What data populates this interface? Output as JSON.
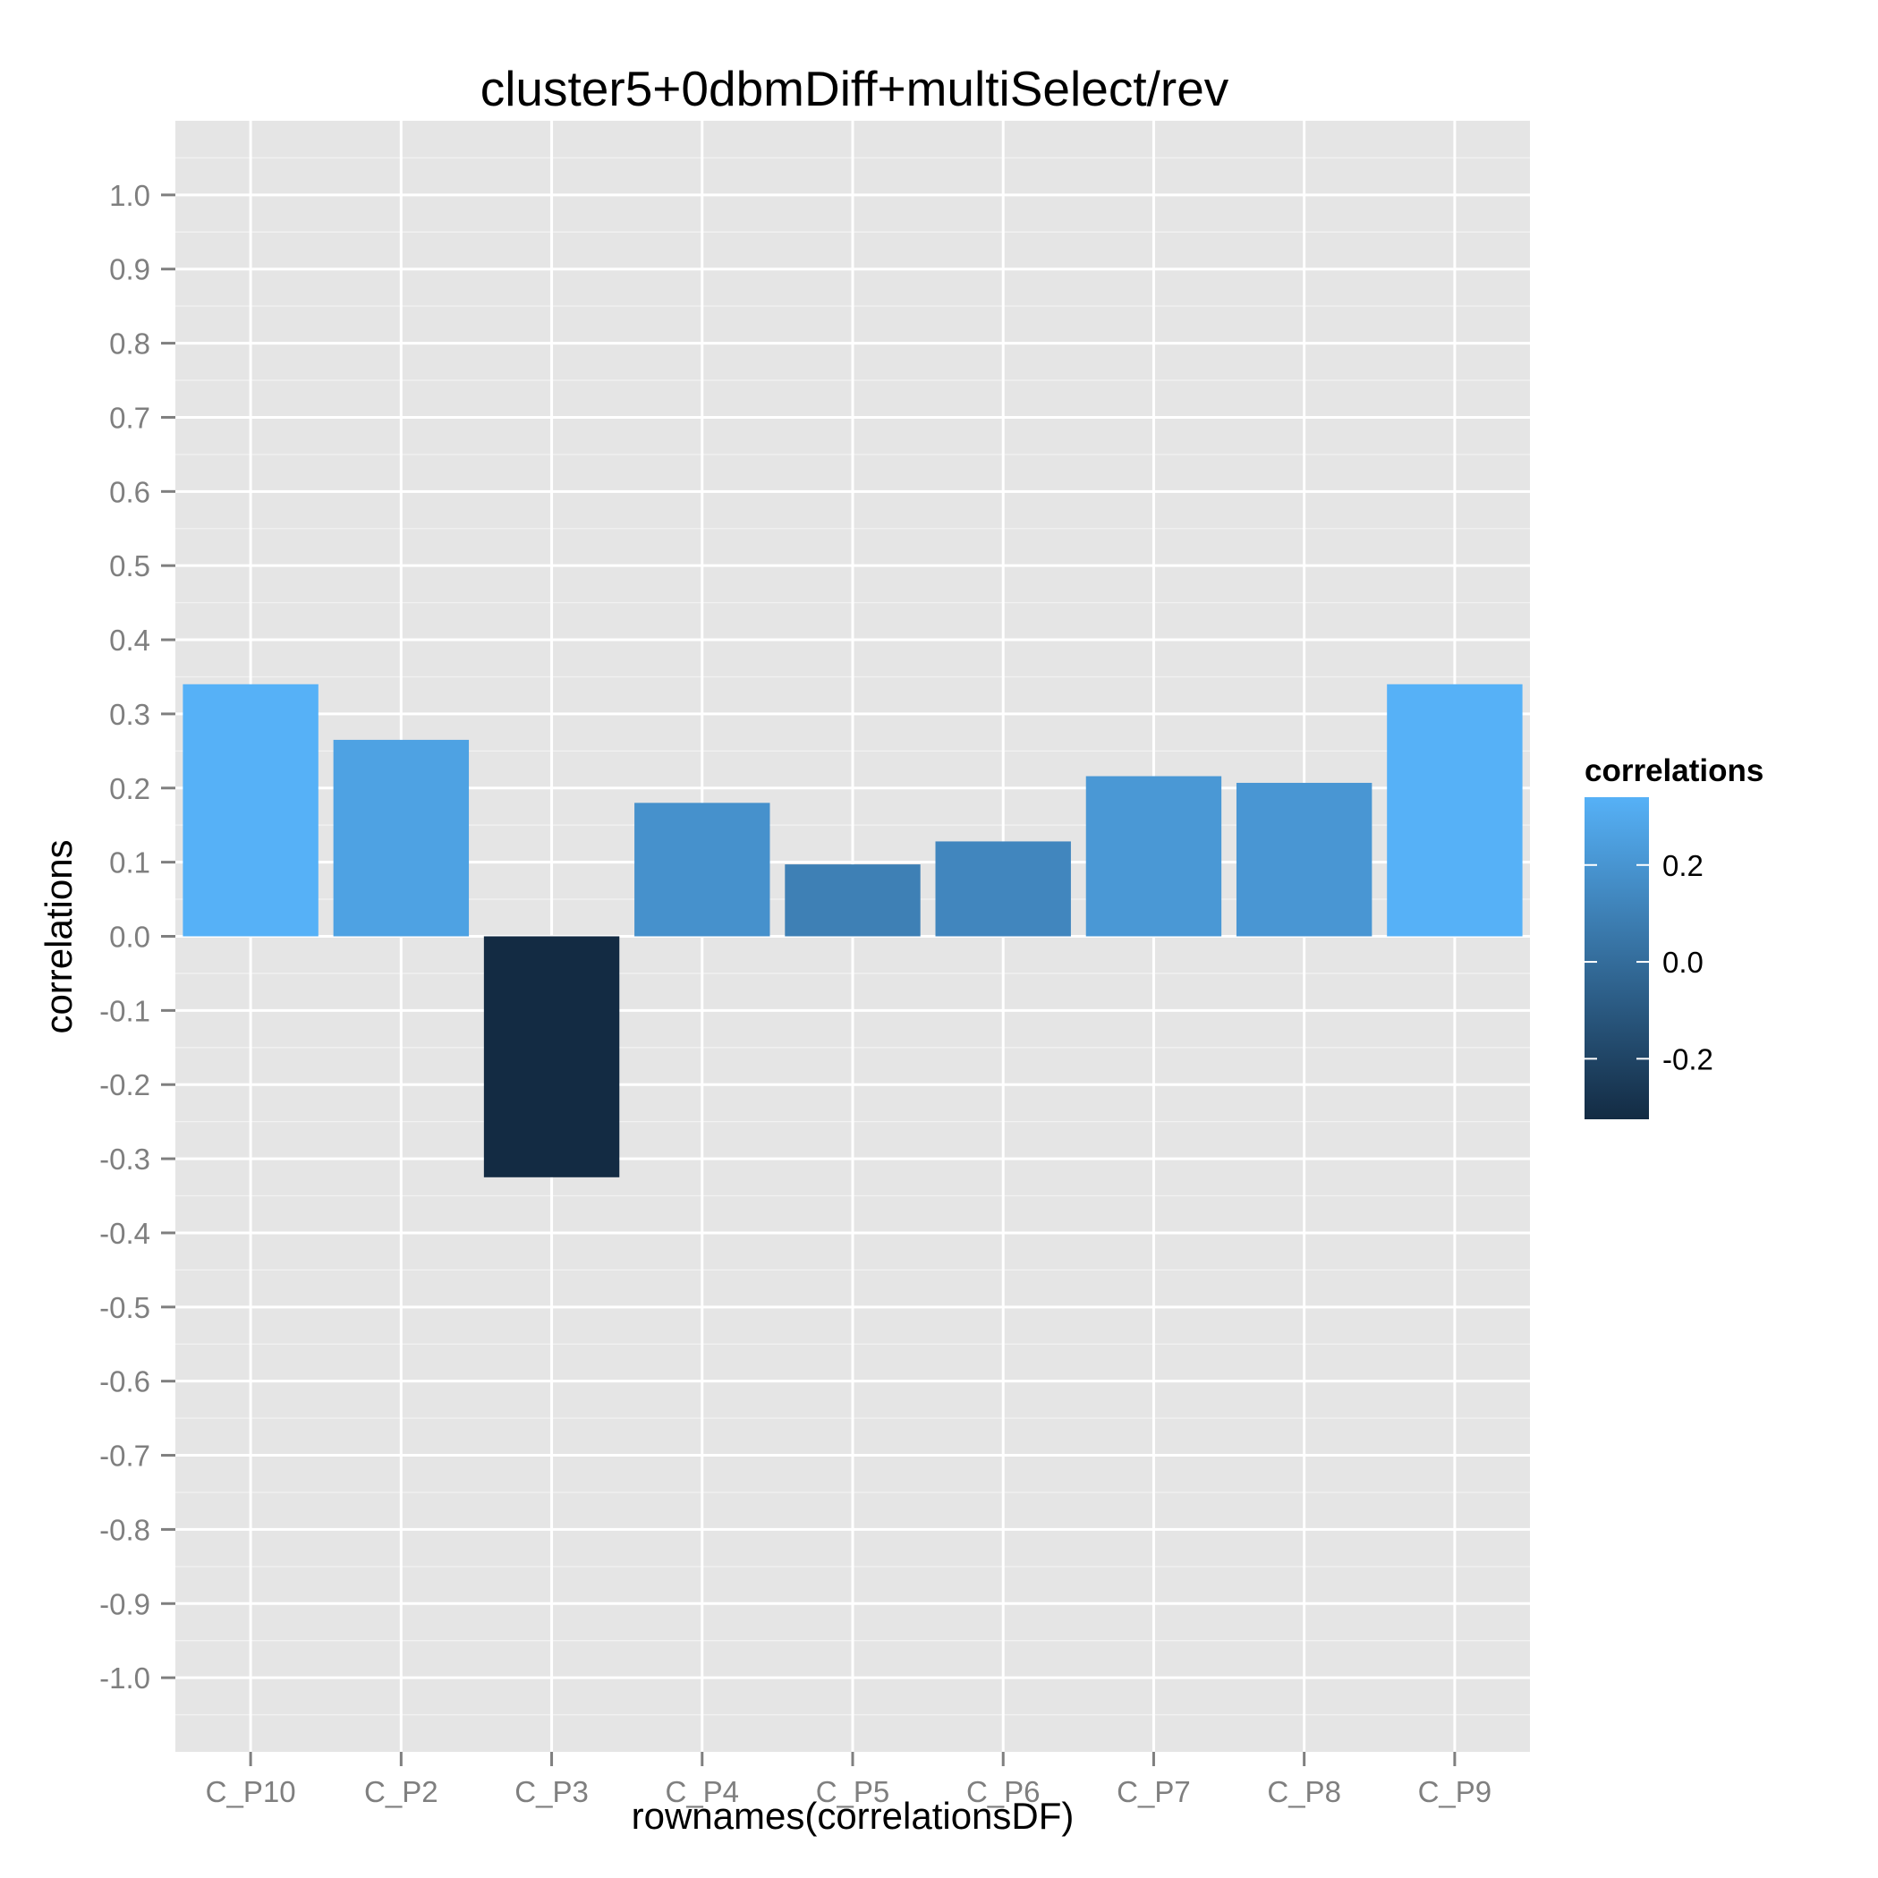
{
  "chart_data": {
    "type": "bar",
    "title": "cluster5+0dbmDiff+multiSelect/rev",
    "xlabel": "rownames(correlationsDF)",
    "ylabel": "correlations",
    "categories": [
      "C_P10",
      "C_P2",
      "C_P3",
      "C_P4",
      "C_P5",
      "C_P6",
      "C_P7",
      "C_P8",
      "C_P9"
    ],
    "values": [
      0.34,
      0.265,
      -0.325,
      0.18,
      0.097,
      0.128,
      0.216,
      0.207,
      0.34
    ],
    "ylim": [
      -1.1,
      1.1
    ],
    "yticks": [
      1.0,
      0.9,
      0.8,
      0.7,
      0.6,
      0.5,
      0.4,
      0.3,
      0.2,
      0.1,
      0.0,
      -0.1,
      -0.2,
      -0.3,
      -0.4,
      -0.5,
      -0.6,
      -0.7,
      -0.8,
      -0.9,
      -1.0
    ],
    "ytick_labels": [
      "1.0",
      "0.9",
      "0.8",
      "0.7",
      "0.6",
      "0.5",
      "0.4",
      "0.3",
      "0.2",
      "0.1",
      "0.0",
      "-0.1",
      "-0.2",
      "-0.3",
      "-0.4",
      "-0.5",
      "-0.6",
      "-0.7",
      "-0.8",
      "-0.9",
      "-1.0"
    ],
    "grid": true,
    "legend": {
      "title": "correlations",
      "position": "right",
      "type": "colorbar",
      "range": [
        -0.325,
        0.34
      ],
      "ticks": [
        0.2,
        0.0,
        -0.2
      ],
      "tick_labels": [
        "0.2",
        "0.0",
        "-0.2"
      ],
      "low_color": "#132B43",
      "high_color": "#56B1F7"
    },
    "colors": {
      "panel": "#E5E5E5",
      "grid_major": "#FFFFFF",
      "grid_minor": "#F2F2F2",
      "tick_text": "#7F7F7F"
    }
  }
}
